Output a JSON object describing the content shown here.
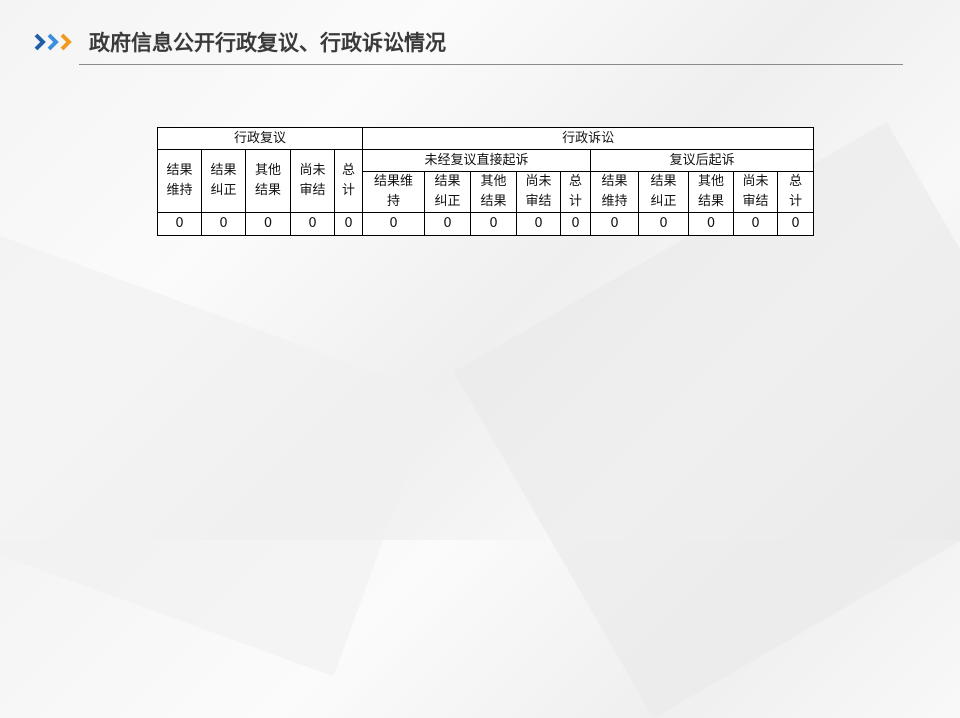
{
  "title": "政府信息公开行政复议、行政诉讼情况",
  "colors": {
    "chevron_dark": "#1f5fa8",
    "chevron_mid": "#3b8fdc",
    "chevron_accent": "#f39a1e",
    "title": "#3a3a3a"
  },
  "table": {
    "group_reconsideration": "行政复议",
    "group_litigation": "行政诉讼",
    "sub_direct": "未经复议直接起诉",
    "sub_after": "复议后起诉",
    "recon_cols": [
      [
        "结果",
        "维持"
      ],
      [
        "结果",
        "纠正"
      ],
      [
        "其他",
        "结果"
      ],
      [
        "尚未",
        "审结"
      ],
      [
        "总",
        "计"
      ]
    ],
    "direct_cols": [
      [
        "结果维",
        "持"
      ],
      [
        "结果",
        "纠正"
      ],
      [
        "其他",
        "结果"
      ],
      [
        "尚未",
        "审结"
      ],
      [
        "总",
        "计"
      ]
    ],
    "after_cols": [
      [
        "结果",
        "维持"
      ],
      [
        "结果",
        "纠正"
      ],
      [
        "其他",
        "结果"
      ],
      [
        "尚未",
        "审结"
      ],
      [
        "总",
        "计"
      ]
    ],
    "values": [
      "0",
      "0",
      "0",
      "0",
      "0",
      "0",
      "0",
      "0",
      "0",
      "0",
      "0",
      "0",
      "0",
      "0",
      "0"
    ]
  }
}
